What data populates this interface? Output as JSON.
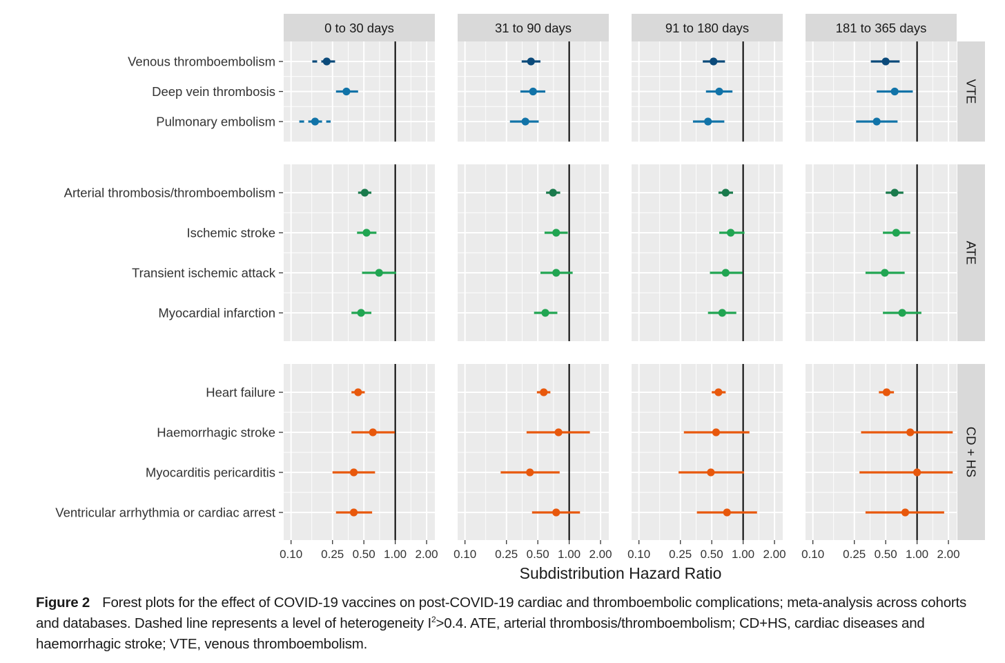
{
  "chart_data": {
    "type": "forest",
    "xlabel": "Subdistribution Hazard Ratio",
    "x_scale": "log",
    "xlim": [
      0.085,
      2.4
    ],
    "x_ticks": [
      0.1,
      0.25,
      0.5,
      1.0,
      2.0
    ],
    "x_tick_labels": [
      "0.10",
      "0.25",
      "0.50",
      "1.00",
      "2.00"
    ],
    "reference_line": 1.0,
    "grid": true,
    "periods": [
      "0 to 30 days",
      "31 to 90 days",
      "91 to 180 days",
      "181 to 365 days"
    ],
    "groups": [
      {
        "name": "VTE",
        "color": "#0b4a7a",
        "outcomes": [
          {
            "label": "Venous thromboembolism",
            "color": "#0b4a7a",
            "estimates": [
              {
                "hr": 0.22,
                "lo": 0.16,
                "hi": 0.29,
                "dashed": true
              },
              {
                "hr": 0.43,
                "lo": 0.35,
                "hi": 0.53,
                "dashed": false
              },
              {
                "hr": 0.52,
                "lo": 0.41,
                "hi": 0.67,
                "dashed": false
              },
              {
                "hr": 0.5,
                "lo": 0.36,
                "hi": 0.68,
                "dashed": false
              }
            ]
          },
          {
            "label": "Deep vein thrombosis",
            "color": "#1173a8",
            "estimates": [
              {
                "hr": 0.34,
                "lo": 0.27,
                "hi": 0.44,
                "dashed": false
              },
              {
                "hr": 0.45,
                "lo": 0.34,
                "hi": 0.59,
                "dashed": false
              },
              {
                "hr": 0.59,
                "lo": 0.44,
                "hi": 0.79,
                "dashed": false
              },
              {
                "hr": 0.61,
                "lo": 0.41,
                "hi": 0.91,
                "dashed": false
              }
            ]
          },
          {
            "label": "Pulmonary embolism",
            "color": "#1173a8",
            "estimates": [
              {
                "hr": 0.17,
                "lo": 0.12,
                "hi": 0.24,
                "dashed": true
              },
              {
                "hr": 0.38,
                "lo": 0.27,
                "hi": 0.51,
                "dashed": false
              },
              {
                "hr": 0.46,
                "lo": 0.33,
                "hi": 0.66,
                "dashed": false
              },
              {
                "hr": 0.41,
                "lo": 0.26,
                "hi": 0.65,
                "dashed": false
              }
            ]
          }
        ]
      },
      {
        "name": "ATE",
        "color": "#1a7a4c",
        "outcomes": [
          {
            "label": "Arterial thrombosis/thromboembolism",
            "color": "#1a7a4c",
            "estimates": [
              {
                "hr": 0.51,
                "lo": 0.44,
                "hi": 0.59,
                "dashed": false
              },
              {
                "hr": 0.7,
                "lo": 0.6,
                "hi": 0.82,
                "dashed": false
              },
              {
                "hr": 0.68,
                "lo": 0.58,
                "hi": 0.8,
                "dashed": false
              },
              {
                "hr": 0.61,
                "lo": 0.5,
                "hi": 0.74,
                "dashed": false
              }
            ]
          },
          {
            "label": "Ischemic stroke",
            "color": "#21a552",
            "estimates": [
              {
                "hr": 0.53,
                "lo": 0.43,
                "hi": 0.66,
                "dashed": false
              },
              {
                "hr": 0.75,
                "lo": 0.58,
                "hi": 0.97,
                "dashed": false
              },
              {
                "hr": 0.76,
                "lo": 0.59,
                "hi": 1.03,
                "dashed": false
              },
              {
                "hr": 0.63,
                "lo": 0.47,
                "hi": 0.86,
                "dashed": false
              }
            ]
          },
          {
            "label": "Transient ischemic attack",
            "color": "#21a552",
            "estimates": [
              {
                "hr": 0.7,
                "lo": 0.48,
                "hi": 1.02,
                "dashed": false
              },
              {
                "hr": 0.75,
                "lo": 0.53,
                "hi": 1.08,
                "dashed": false
              },
              {
                "hr": 0.68,
                "lo": 0.48,
                "hi": 0.99,
                "dashed": false
              },
              {
                "hr": 0.49,
                "lo": 0.32,
                "hi": 0.76,
                "dashed": false
              }
            ]
          },
          {
            "label": "Myocardial infarction",
            "color": "#21a552",
            "estimates": [
              {
                "hr": 0.47,
                "lo": 0.38,
                "hi": 0.59,
                "dashed": false
              },
              {
                "hr": 0.59,
                "lo": 0.46,
                "hi": 0.77,
                "dashed": false
              },
              {
                "hr": 0.63,
                "lo": 0.46,
                "hi": 0.86,
                "dashed": false
              },
              {
                "hr": 0.72,
                "lo": 0.47,
                "hi": 1.1,
                "dashed": false
              }
            ]
          }
        ]
      },
      {
        "name": "CD + HS",
        "color": "#e8580c",
        "outcomes": [
          {
            "label": "Heart failure",
            "color": "#e8580c",
            "estimates": [
              {
                "hr": 0.44,
                "lo": 0.38,
                "hi": 0.51,
                "dashed": false
              },
              {
                "hr": 0.57,
                "lo": 0.49,
                "hi": 0.66,
                "dashed": false
              },
              {
                "hr": 0.58,
                "lo": 0.5,
                "hi": 0.68,
                "dashed": false
              },
              {
                "hr": 0.51,
                "lo": 0.43,
                "hi": 0.6,
                "dashed": false
              }
            ]
          },
          {
            "label": "Haemorrhagic stroke",
            "color": "#e8580c",
            "estimates": [
              {
                "hr": 0.61,
                "lo": 0.38,
                "hi": 0.99,
                "dashed": false
              },
              {
                "hr": 0.79,
                "lo": 0.39,
                "hi": 1.58,
                "dashed": false
              },
              {
                "hr": 0.55,
                "lo": 0.27,
                "hi": 1.15,
                "dashed": false
              },
              {
                "hr": 0.86,
                "lo": 0.29,
                "hi": 2.2,
                "dashed": false
              }
            ]
          },
          {
            "label": "Myocarditis pericarditis",
            "color": "#e8580c",
            "estimates": [
              {
                "hr": 0.4,
                "lo": 0.25,
                "hi": 0.64,
                "dashed": false
              },
              {
                "hr": 0.42,
                "lo": 0.22,
                "hi": 0.81,
                "dashed": false
              },
              {
                "hr": 0.49,
                "lo": 0.24,
                "hi": 1.02,
                "dashed": false
              },
              {
                "hr": 1.0,
                "lo": 0.28,
                "hi": 2.2,
                "dashed": false
              }
            ]
          },
          {
            "label": "Ventricular arrhythmia or cardiac arrest",
            "color": "#e8580c",
            "estimates": [
              {
                "hr": 0.4,
                "lo": 0.27,
                "hi": 0.6,
                "dashed": false
              },
              {
                "hr": 0.75,
                "lo": 0.44,
                "hi": 1.27,
                "dashed": false
              },
              {
                "hr": 0.7,
                "lo": 0.36,
                "hi": 1.36,
                "dashed": false
              },
              {
                "hr": 0.77,
                "lo": 0.32,
                "hi": 1.82,
                "dashed": false
              }
            ]
          }
        ]
      }
    ]
  },
  "caption": {
    "label": "Figure 2",
    "text_before_sup": "Forest plots for the effect of COVID-19 vaccines on post-COVID-19 cardiac and thromboembolic complications; meta-analysis across cohorts and databases. Dashed line represents a level of heterogeneity I",
    "sup": "2",
    "text_after_sup": ">0.4. ATE, arterial thrombosis/thromboembolism; CD+HS, cardiac diseases and haemorrhagic stroke; VTE, venous thromboembolism."
  },
  "colors": {
    "panel_bg": "#ebebeb",
    "strip_bg": "#d9d9d9",
    "grid_major": "#ffffff",
    "reference_line": "#000000"
  }
}
